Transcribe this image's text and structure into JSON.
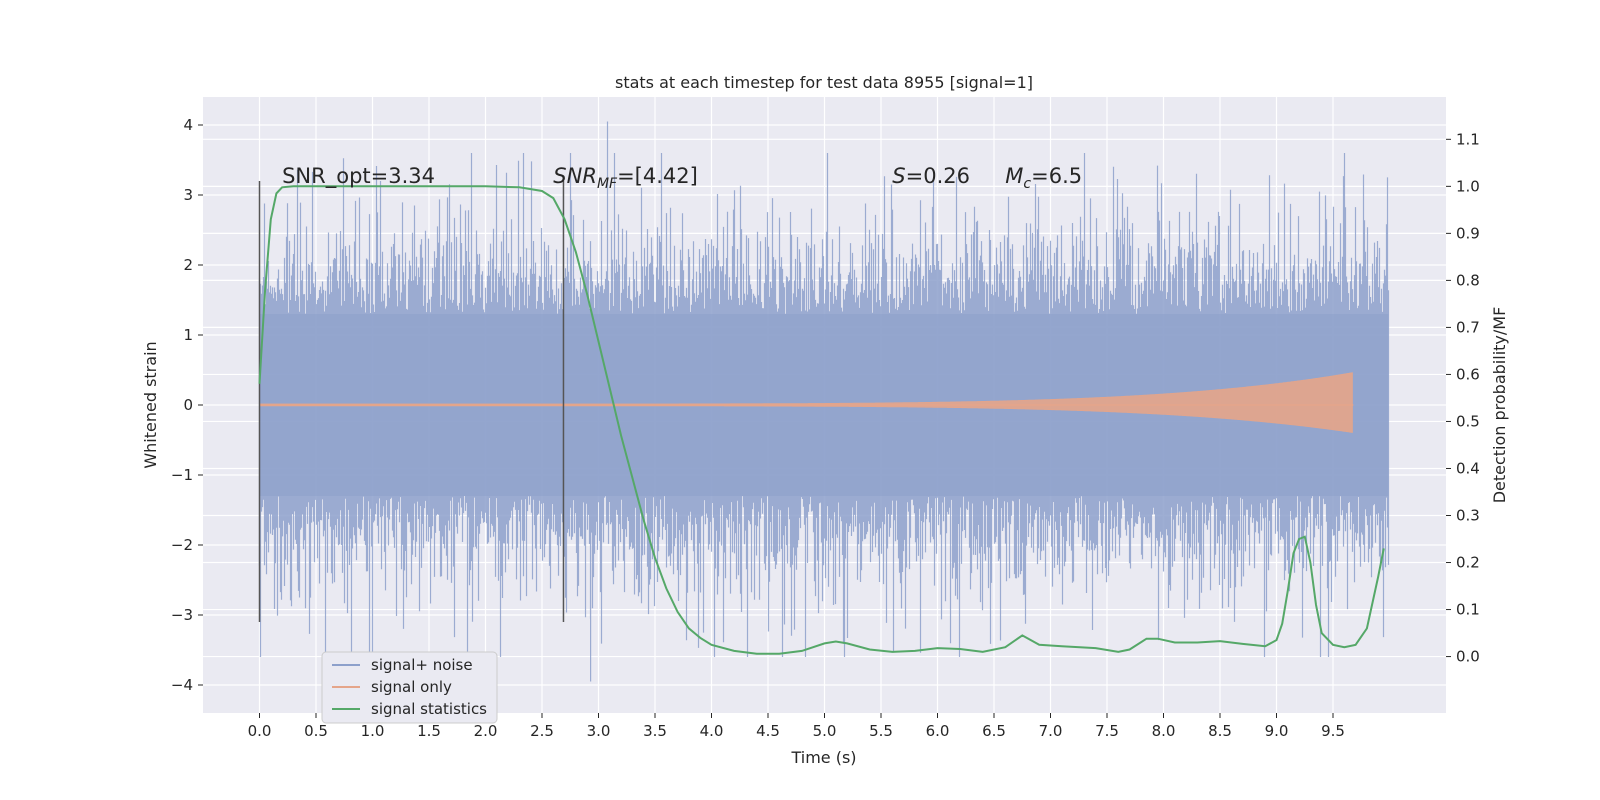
{
  "chart_data": {
    "type": "line",
    "title": "stats at each timestep for test data 8955 [signal=1]",
    "xlabel": "Time (s)",
    "ylabel": "Whitened strain",
    "ylabel_right": "Detection probability/MF",
    "xlim": [
      -0.5,
      10.5
    ],
    "ylim": [
      -4.4,
      4.4
    ],
    "ylim_right": [
      -0.12,
      1.19
    ],
    "x_ticks": [
      0.0,
      0.5,
      1.0,
      1.5,
      2.0,
      2.5,
      3.0,
      3.5,
      4.0,
      4.5,
      5.0,
      5.5,
      6.0,
      6.5,
      7.0,
      7.5,
      8.0,
      8.5,
      9.0,
      9.5
    ],
    "x_tick_labels": [
      "0.0",
      "0.5",
      "1.0",
      "1.5",
      "2.0",
      "2.5",
      "3.0",
      "3.5",
      "4.0",
      "4.5",
      "5.0",
      "5.5",
      "6.0",
      "6.5",
      "7.0",
      "7.5",
      "8.0",
      "8.5",
      "9.0",
      "9.5"
    ],
    "y_ticks": [
      -4,
      -3,
      -2,
      -1,
      0,
      1,
      2,
      3,
      4
    ],
    "y_tick_labels": [
      "−4",
      "−3",
      "−2",
      "−1",
      "0",
      "1",
      "2",
      "3",
      "4"
    ],
    "y_right_ticks": [
      0.0,
      0.1,
      0.2,
      0.3,
      0.4,
      0.5,
      0.6,
      0.7,
      0.8,
      0.9,
      1.0,
      1.1
    ],
    "y_right_tick_labels": [
      "0.0",
      "0.1",
      "0.2",
      "0.3",
      "0.4",
      "0.5",
      "0.6",
      "0.7",
      "0.8",
      "0.9",
      "1.0",
      "1.1"
    ],
    "grid": true,
    "legend_position": "bottom-left",
    "annotations": [
      {
        "text": "SNR_opt=3.34",
        "x": 0.2,
        "y": 3.2
      },
      {
        "text": "SNR",
        "sub": "MF",
        "rest": "=[4.42]",
        "x": 2.6,
        "y": 3.2,
        "italic_base": true
      },
      {
        "text": "S",
        "rest": "=0.26",
        "x": 5.6,
        "y": 3.2,
        "italic_base": true
      },
      {
        "text": "M",
        "sub": "c",
        "rest": "=6.5",
        "x": 6.6,
        "y": 3.2,
        "italic_base": true
      }
    ],
    "vlines": [
      {
        "x": 0.0,
        "ymin": -3.1,
        "ymax": 3.2
      },
      {
        "x": 2.69,
        "ymin": -3.1,
        "ymax": 3.2
      }
    ],
    "series": [
      {
        "name": "signal+ noise",
        "axis": "left",
        "color": "#8da0cb",
        "kind": "noise",
        "x_range": [
          0.0,
          9.99
        ],
        "envelope_core": 1.3,
        "envelope_peak": 4.05,
        "envelope_min": -3.95
      },
      {
        "name": "signal only",
        "axis": "left",
        "color": "#e5a58a",
        "kind": "chirp",
        "x_range": [
          0.0,
          9.68
        ],
        "amp_end": 0.45
      },
      {
        "name": "signal statistics",
        "axis": "right",
        "color": "#55a868",
        "kind": "line",
        "x": [
          0.0,
          0.05,
          0.1,
          0.15,
          0.2,
          0.3,
          0.5,
          1.0,
          1.5,
          2.0,
          2.3,
          2.5,
          2.6,
          2.7,
          2.8,
          2.9,
          3.0,
          3.1,
          3.2,
          3.3,
          3.4,
          3.5,
          3.6,
          3.7,
          3.8,
          3.9,
          4.0,
          4.2,
          4.4,
          4.6,
          4.8,
          5.0,
          5.1,
          5.2,
          5.4,
          5.6,
          5.8,
          6.0,
          6.2,
          6.4,
          6.6,
          6.75,
          6.9,
          7.1,
          7.4,
          7.6,
          7.7,
          7.85,
          7.95,
          8.1,
          8.3,
          8.5,
          8.7,
          8.9,
          9.0,
          9.05,
          9.1,
          9.15,
          9.2,
          9.25,
          9.3,
          9.35,
          9.4,
          9.5,
          9.6,
          9.7,
          9.8,
          9.9,
          9.95
        ],
        "y": [
          0.58,
          0.78,
          0.93,
          0.985,
          0.998,
          1.0,
          1.0,
          1.0,
          1.0,
          1.0,
          0.998,
          0.99,
          0.975,
          0.93,
          0.86,
          0.77,
          0.67,
          0.57,
          0.47,
          0.38,
          0.29,
          0.21,
          0.145,
          0.095,
          0.06,
          0.04,
          0.025,
          0.012,
          0.006,
          0.006,
          0.012,
          0.028,
          0.032,
          0.028,
          0.015,
          0.01,
          0.012,
          0.018,
          0.016,
          0.01,
          0.02,
          0.045,
          0.025,
          0.022,
          0.018,
          0.01,
          0.015,
          0.038,
          0.038,
          0.03,
          0.03,
          0.033,
          0.027,
          0.022,
          0.035,
          0.07,
          0.14,
          0.22,
          0.25,
          0.255,
          0.2,
          0.11,
          0.05,
          0.025,
          0.02,
          0.025,
          0.06,
          0.17,
          0.23
        ]
      }
    ]
  }
}
